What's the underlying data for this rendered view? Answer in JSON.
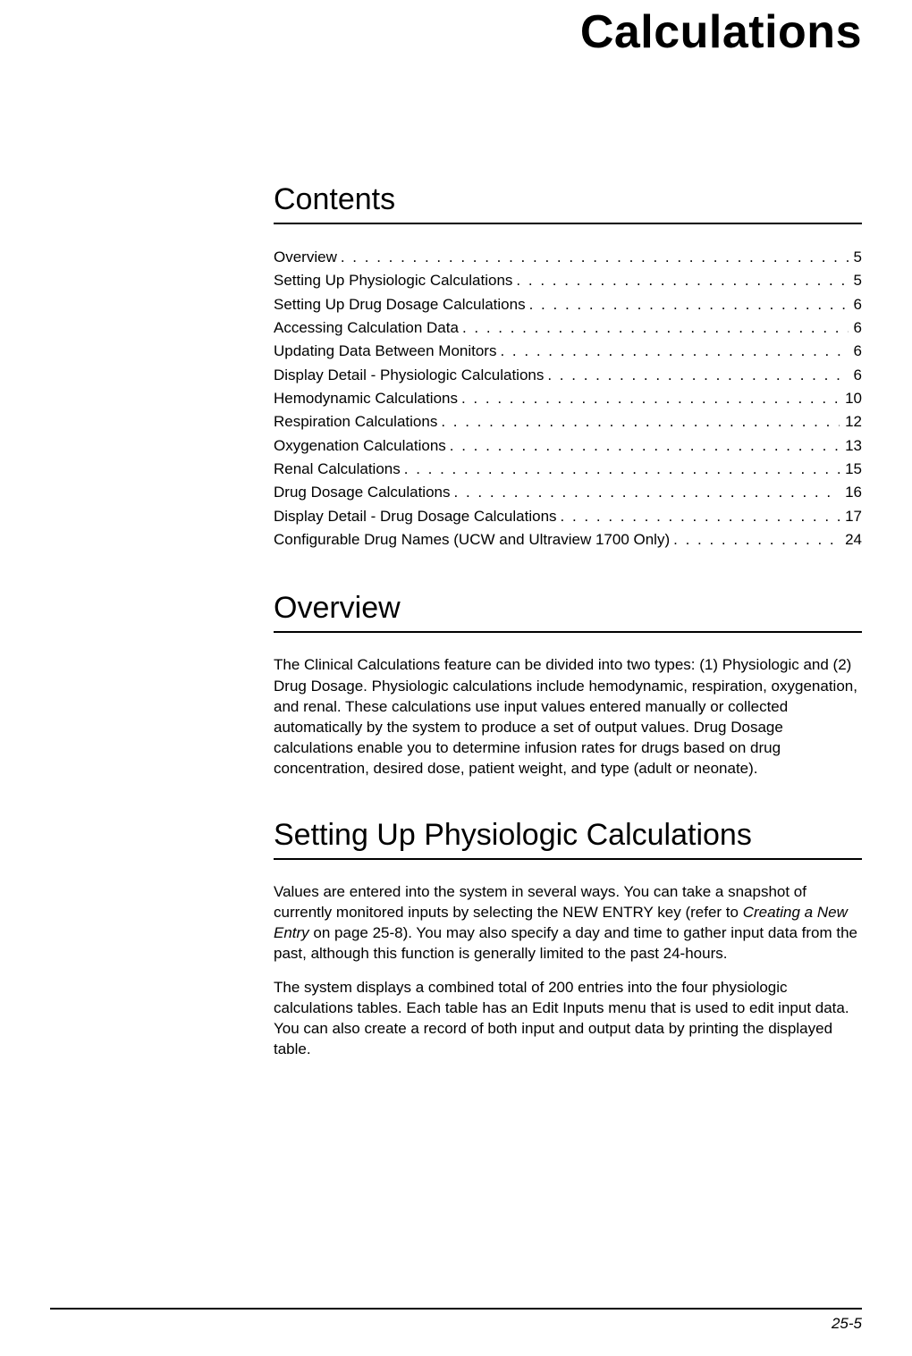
{
  "chapter_title": "Calculations",
  "footer_page": "25-5",
  "colors": {
    "text": "#000000",
    "background": "#ffffff",
    "rule": "#000000"
  },
  "fonts": {
    "body_size_pt": 12,
    "heading_size_pt": 24,
    "title_size_pt": 38
  },
  "sections": {
    "contents": {
      "heading": "Contents",
      "toc": [
        {
          "label": "Overview",
          "page": "5"
        },
        {
          "label": "Setting Up Physiologic Calculations",
          "page": "5"
        },
        {
          "label": "Setting Up Drug Dosage Calculations",
          "page": "6"
        },
        {
          "label": "Accessing Calculation Data",
          "page": "6"
        },
        {
          "label": "Updating Data Between Monitors",
          "page": "6"
        },
        {
          "label": "Display Detail - Physiologic Calculations",
          "page": "6"
        },
        {
          "label": "Hemodynamic Calculations",
          "page": "10"
        },
        {
          "label": "Respiration Calculations",
          "page": "12"
        },
        {
          "label": "Oxygenation Calculations",
          "page": "13"
        },
        {
          "label": "Renal Calculations",
          "page": "15"
        },
        {
          "label": "Drug Dosage Calculations",
          "page": "16"
        },
        {
          "label": "Display Detail - Drug Dosage Calculations",
          "page": "17"
        },
        {
          "label": "Configurable Drug Names (UCW and Ultraview 1700 Only)",
          "page": "24"
        }
      ]
    },
    "overview": {
      "heading": "Overview",
      "para1": "The Clinical Calculations feature can be divided into two types: (1) Physiologic and (2) Drug Dosage. Physiologic calculations include hemodynamic, respiration, oxygenation, and renal. These calculations use input values entered manually or collected automatically by the system to produce a set of output values. Drug Dosage calculations enable you to determine infusion rates for drugs based on drug concentration, desired dose, patient weight, and type (adult or neonate)."
    },
    "setup_physio": {
      "heading": "Setting Up Physiologic Calculations",
      "para1_a": "Values are entered into the system in several ways. You can take a snapshot of currently monitored inputs by selecting the NEW ENTRY key (refer to ",
      "para1_em": "Creating a New Entry",
      "para1_b": " on page 25-8). You may also specify a day and time to gather input data from the past, although this function is generally limited to the past 24-hours.",
      "para2": "The system displays a combined total of 200 entries into the four physiologic calculations tables. Each table has an Edit Inputs menu that is used to edit input data. You can also create a record of both input and output data by printing the displayed table."
    }
  }
}
